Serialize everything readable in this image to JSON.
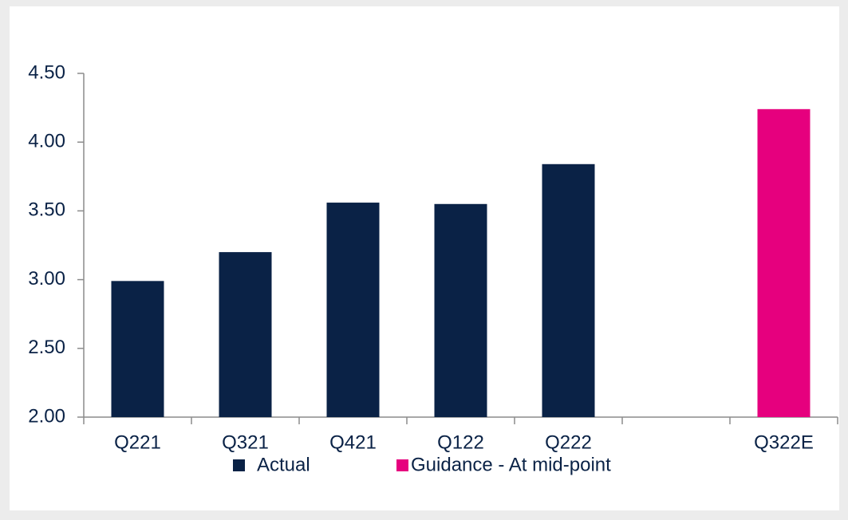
{
  "chart_data": {
    "type": "bar",
    "categories": [
      "Q221",
      "Q321",
      "Q421",
      "Q122",
      "Q222",
      null,
      "Q322E"
    ],
    "series": [
      {
        "name": "Actual",
        "color": "#0a2246",
        "values": [
          2.99,
          3.2,
          3.56,
          3.55,
          3.84,
          null,
          null
        ]
      },
      {
        "name": "Guidance - At mid-point",
        "color": "#e6007e",
        "values": [
          null,
          null,
          null,
          null,
          null,
          null,
          4.24
        ]
      }
    ],
    "ylim": [
      2.0,
      4.5
    ],
    "yticks": [
      {
        "value": 2.0,
        "label": "2.00"
      },
      {
        "value": 2.5,
        "label": "2.50"
      },
      {
        "value": 3.0,
        "label": "3.00"
      },
      {
        "value": 3.5,
        "label": "3.50"
      },
      {
        "value": 4.0,
        "label": "4.00"
      },
      {
        "value": 4.5,
        "label": "4.50"
      }
    ],
    "grid": false,
    "legend": "bottom"
  }
}
